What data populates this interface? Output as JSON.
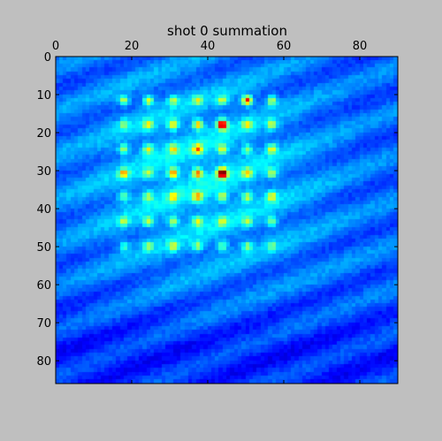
{
  "chart_data": {
    "type": "heatmap",
    "title": "shot 0 summation",
    "xlabel": "",
    "ylabel": "",
    "colormap": "jet",
    "x_axis_position": "top",
    "xlim": [
      0,
      90
    ],
    "ylim": [
      86,
      0
    ],
    "x_ticks": [
      0,
      20,
      40,
      60,
      80
    ],
    "y_ticks": [
      0,
      10,
      20,
      30,
      40,
      50,
      60,
      70,
      80
    ],
    "x_tick_labels": [
      "0",
      "20",
      "40",
      "60",
      "80"
    ],
    "y_tick_labels": [
      "0",
      "10",
      "20",
      "30",
      "40",
      "50",
      "60",
      "70",
      "80"
    ],
    "grid": false,
    "spot_columns_x": [
      18,
      24.5,
      31,
      37.5,
      44,
      50.5,
      57
    ],
    "spot_rows_y": [
      11.7,
      18,
      24.5,
      30.8,
      37,
      43.5,
      50
    ],
    "peak_intensities": [
      [
        0.55,
        0.6,
        0.5,
        0.5,
        0.5,
        0.85,
        0.55
      ],
      [
        0.45,
        0.55,
        0.62,
        0.65,
        0.95,
        0.55,
        0.5
      ],
      [
        0.5,
        0.55,
        0.55,
        0.65,
        0.55,
        0.45,
        0.55
      ],
      [
        0.62,
        0.45,
        0.72,
        0.7,
        1.0,
        0.55,
        0.5
      ],
      [
        0.45,
        0.45,
        0.55,
        0.62,
        0.5,
        0.5,
        0.55
      ],
      [
        0.45,
        0.5,
        0.5,
        0.5,
        0.45,
        0.45,
        0.45
      ],
      [
        0.4,
        0.45,
        0.5,
        0.45,
        0.45,
        0.45,
        0.4
      ]
    ],
    "background_level": 0.22
  }
}
